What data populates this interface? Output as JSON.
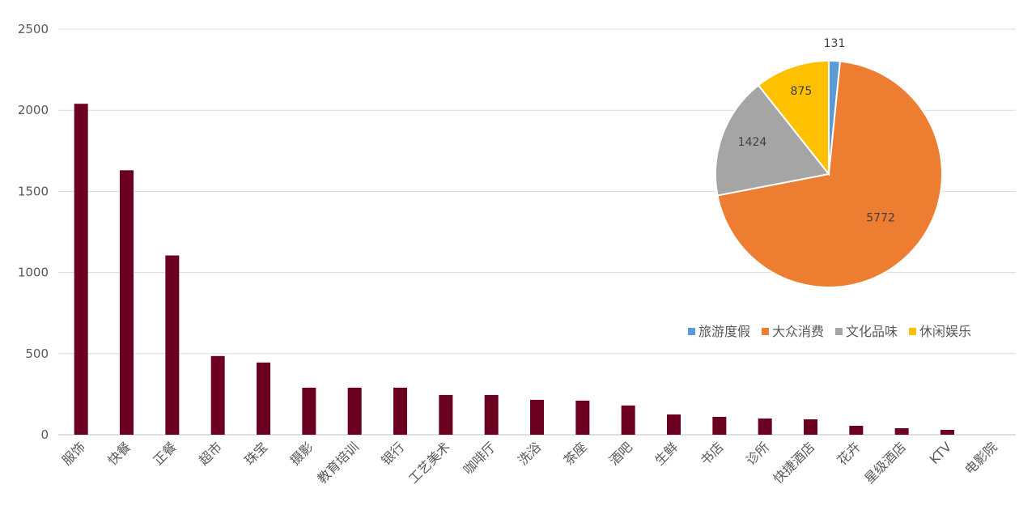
{
  "chart_data": [
    {
      "type": "bar",
      "categories": [
        "服饰",
        "快餐",
        "正餐",
        "超市",
        "珠宝",
        "摄影",
        "教育培训",
        "银行",
        "工艺美术",
        "咖啡厅",
        "洗浴",
        "茶座",
        "酒吧",
        "生鲜",
        "书店",
        "诊所",
        "快捷酒店",
        "花卉",
        "星级酒店",
        "KTV",
        "电影院"
      ],
      "values": [
        2040,
        1630,
        1105,
        485,
        445,
        290,
        290,
        290,
        245,
        245,
        215,
        210,
        180,
        125,
        110,
        100,
        95,
        55,
        40,
        30,
        0
      ],
      "ylim": [
        0,
        2500
      ],
      "yticks": [
        0,
        500,
        1000,
        1500,
        2000,
        2500
      ],
      "grid": true,
      "color": "#6b0020"
    },
    {
      "type": "pie",
      "labels": [
        "旅游度假",
        "大众消费",
        "文化品味",
        "休闲娱乐"
      ],
      "values": [
        131,
        5772,
        1424,
        875
      ],
      "colors": [
        "#5b9bd5",
        "#ed7d31",
        "#a5a5a5",
        "#ffc000"
      ],
      "legend": "bottom"
    }
  ]
}
